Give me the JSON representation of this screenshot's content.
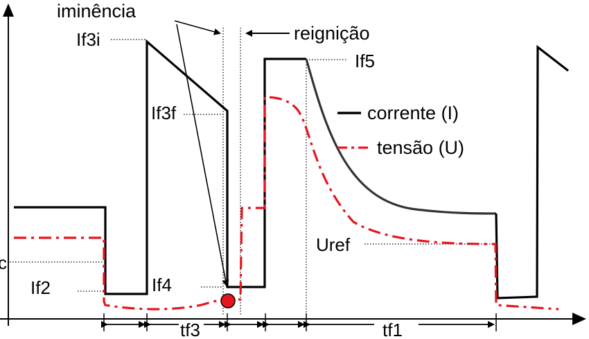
{
  "labels": {
    "iminencia": "iminência",
    "reignicao": "reignição",
    "if3i": "If3i",
    "if3f": "If3f",
    "if5": "If5",
    "if4": "If4",
    "if2": "If2",
    "uref": "Uref",
    "c_fragment": "c",
    "tf3": "tf3",
    "tf1": "tf1"
  },
  "legend": {
    "corrente": "corrente (I)",
    "tensao": "tensão (U)"
  },
  "colors": {
    "current": "#000000",
    "current_tail": "#333333",
    "voltage": "#e8141e",
    "marker": "#e8141e"
  }
}
